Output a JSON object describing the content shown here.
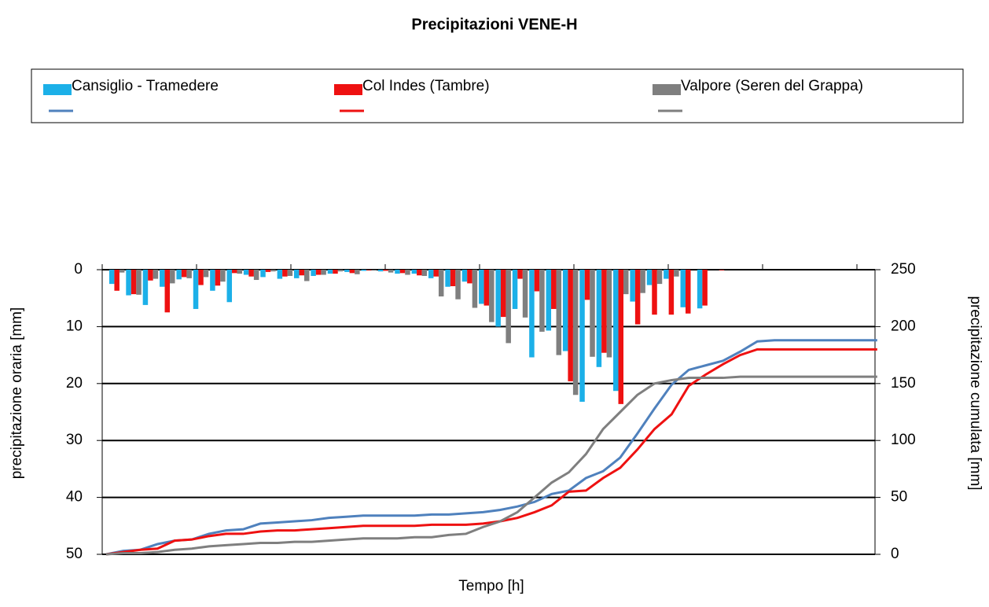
{
  "chart_data": {
    "type": "bar_line",
    "title": "Precipitazioni VENE-H",
    "x_label": "Tempo [h]",
    "y_label": "precipitazione oraria [mm]",
    "y2_label": "precipitazione cumulata [mm]",
    "categories": [
      null,
      null,
      null,
      null,
      null,
      null,
      null,
      null,
      null,
      null,
      null,
      null,
      null,
      null,
      null,
      null,
      null,
      null,
      null,
      null,
      null,
      null,
      null,
      null,
      null,
      null,
      null,
      null,
      null,
      null,
      null,
      null,
      null,
      null,
      null,
      null,
      null,
      null,
      null,
      null,
      null,
      null,
      null,
      null,
      null,
      null
    ],
    "ylim": [
      0,
      50
    ],
    "y_inverted": true,
    "yticks": [
      0,
      10,
      20,
      30,
      40,
      50
    ],
    "y2lim": [
      0,
      250
    ],
    "y2ticks": [
      0,
      50,
      100,
      150,
      200,
      250
    ],
    "grid": true,
    "series": [
      {
        "name": "Cansiglio - Tramedere",
        "kind": "bar",
        "color": "#1cb0e8",
        "values": [
          2.5,
          4.5,
          6.2,
          3.0,
          1.7,
          6.9,
          3.7,
          5.7,
          0.9,
          1.3,
          1.6,
          1.5,
          1.1,
          0.7,
          0.4,
          0.2,
          0.3,
          0.7,
          0.7,
          1.5,
          3.0,
          2.1,
          6.0,
          10.0,
          6.9,
          15.4,
          10.7,
          14.3,
          23.2,
          17.1,
          21.3,
          5.6,
          2.7,
          1.6,
          6.6,
          6.8,
          0,
          0,
          0,
          0,
          0,
          0,
          0,
          0,
          0,
          0
        ]
      },
      {
        "name": "Col Indes (Tambre)",
        "kind": "bar",
        "color": "#ee1111",
        "values": [
          3.7,
          4.3,
          1.9,
          7.5,
          1.3,
          2.7,
          2.8,
          0.6,
          1.2,
          0.4,
          1.2,
          1.0,
          0.9,
          0.7,
          0.6,
          0.1,
          0.2,
          0.6,
          1.0,
          1.2,
          2.9,
          2.4,
          6.3,
          8.3,
          1.6,
          3.8,
          6.9,
          19.6,
          5.3,
          14.6,
          23.6,
          9.6,
          7.9,
          7.9,
          7.7,
          6.3,
          0.1,
          0,
          0,
          0,
          0,
          0,
          0,
          0,
          0,
          0
        ]
      },
      {
        "name": "Valpore (Seren del Grappa)",
        "kind": "bar",
        "color": "#7f7f7f",
        "values": [
          0.5,
          4.4,
          1.6,
          2.4,
          1.5,
          1.3,
          2.1,
          0.7,
          1.8,
          0.3,
          1.1,
          2.0,
          0.9,
          0.3,
          0.8,
          0.1,
          0.5,
          0.9,
          1.1,
          4.7,
          5.2,
          6.7,
          9.2,
          12.9,
          8.4,
          10.9,
          15.0,
          22.0,
          15.3,
          15.4,
          4.3,
          4.1,
          2.5,
          1.2,
          0,
          0,
          0,
          0,
          0,
          0,
          0,
          0,
          0,
          0,
          0,
          0
        ]
      },
      {
        "kind": "line",
        "axis": "y2",
        "color": "#4f81bd",
        "values": [
          0,
          3,
          4,
          9,
          12,
          13,
          18,
          21,
          22,
          27,
          28,
          29,
          30,
          32,
          33,
          34,
          34,
          34,
          34,
          35,
          35,
          36,
          37,
          39,
          42,
          46,
          53,
          56,
          67,
          73,
          85,
          106,
          128,
          149,
          162,
          166,
          170,
          178,
          187,
          188,
          188,
          188,
          188,
          188,
          188,
          188
        ]
      },
      {
        "kind": "line",
        "axis": "y2",
        "color": "#ee1111",
        "values": [
          0,
          2,
          4,
          5,
          12,
          13,
          16,
          18,
          18,
          20,
          21,
          21,
          22,
          23,
          24,
          25,
          25,
          25,
          25,
          26,
          26,
          26,
          27,
          29,
          32,
          37,
          43,
          55,
          56,
          67,
          76,
          92,
          110,
          123,
          148,
          158,
          167,
          175,
          180,
          180,
          180,
          180,
          180,
          180,
          180,
          180
        ]
      },
      {
        "kind": "line",
        "axis": "y2",
        "color": "#7f7f7f",
        "values": [
          0,
          1,
          1,
          2,
          4,
          5,
          7,
          8,
          9,
          10,
          10,
          11,
          11,
          12,
          13,
          14,
          14,
          14,
          15,
          15,
          17,
          18,
          24,
          29,
          37,
          50,
          63,
          72,
          88,
          110,
          125,
          140,
          150,
          153,
          155,
          155,
          155,
          156,
          156,
          156,
          156,
          156,
          156,
          156,
          156,
          156
        ]
      }
    ]
  }
}
